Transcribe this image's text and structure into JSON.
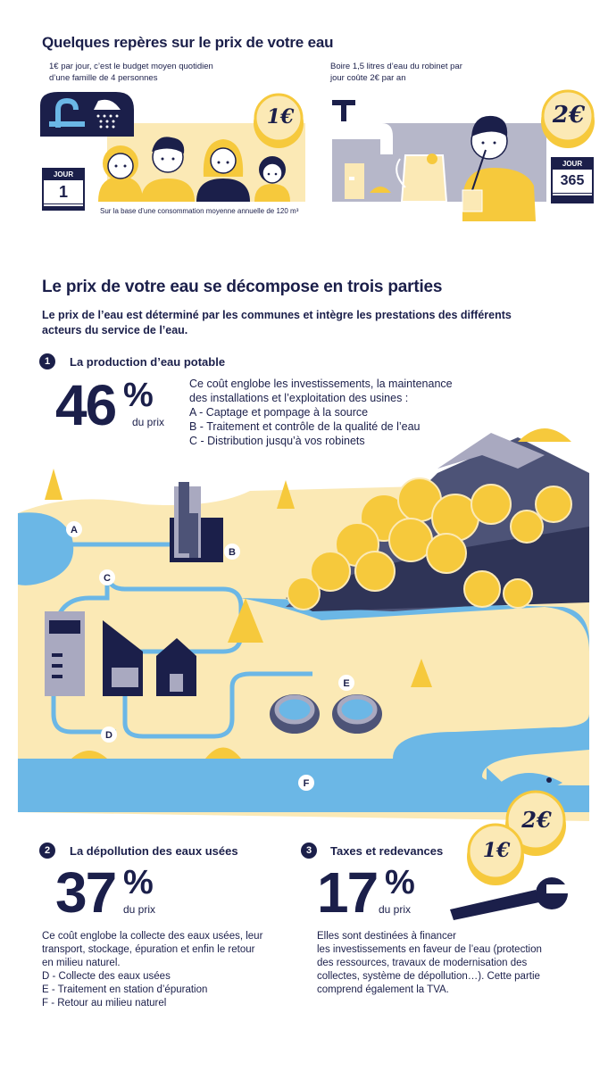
{
  "header": {
    "title": "Quelques repères sur le prix de votre eau"
  },
  "panel_left": {
    "text": "1€ par jour, c’est le budget moyen quotidien d’une famille de 4 personnes",
    "text_line1": "1€ par jour, c’est le budget moyen quotidien",
    "text_line2": "d’une famille de 4 personnes",
    "coin": "1€",
    "calendar_label": "JOUR",
    "calendar_day": "1",
    "footnote": "Sur la base d’une consommation moyenne annuelle de 120 m³"
  },
  "panel_right": {
    "text_line1": "Boire 1,5 litres d’eau du robinet par",
    "text_line2": "jour coûte 2€ par an",
    "coin": "2€",
    "calendar_label": "JOUR",
    "calendar_day": "365"
  },
  "section_main": {
    "title": "Le prix de votre eau se décompose en trois parties",
    "intro_line1": "Le prix de l’eau est déterminé par les communes et intègre les prestations des différents",
    "intro_line2": "acteurs du service de l’eau."
  },
  "part1": {
    "number": "1",
    "title": "La production d’eau potable",
    "percent_number": "46",
    "percent_sign": "%",
    "percent_label": "du prix",
    "desc_lines": [
      "Ce coût englobe les investissements, la maintenance",
      "des installations et l’exploitation des usines :",
      "A - Captage et pompage à la source",
      "B - Traitement et contrôle de la qualité de l’eau",
      "C - Distribution jusqu’à vos robinets"
    ]
  },
  "map_labels": {
    "a": "A",
    "b": "B",
    "c": "C",
    "d": "D",
    "e": "E",
    "f": "F"
  },
  "part2": {
    "number": "2",
    "title": "La dépollution des eaux usées",
    "percent_number": "37",
    "percent_sign": "%",
    "percent_label": "du prix",
    "desc_lines": [
      "Ce coût englobe la collecte des eaux usées, leur",
      "transport, stockage, épuration et enfin le retour",
      "en milieu naturel.",
      "D - Collecte des eaux usées",
      "E - Traitement en station d’épuration",
      "F - Retour au milieu naturel"
    ]
  },
  "part3": {
    "number": "3",
    "title": "Taxes et redevances",
    "percent_number": "17",
    "percent_sign": "%",
    "percent_label": "du prix",
    "desc_lines": [
      "Elles sont destinées à financer",
      "les investissements en faveur de l’eau (protection",
      "des ressources, travaux de modernisation des",
      "collectes, système de dépollution…). Cette partie",
      "comprend également la TVA."
    ],
    "coin_1": "1€",
    "coin_2": "2€"
  },
  "colors": {
    "navy": "#1b1f4a",
    "yellow": "#f6c93c",
    "sand": "#fbe9b5",
    "water": "#6bb7e6",
    "grey": "#a9a9c0"
  }
}
